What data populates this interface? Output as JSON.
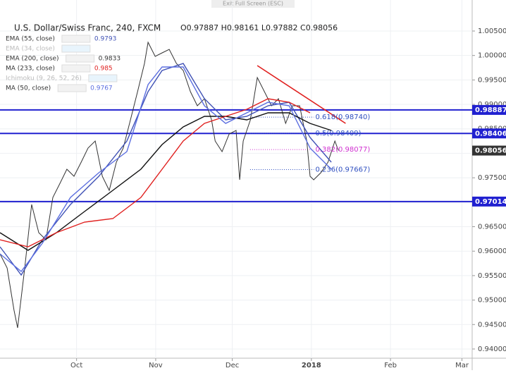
{
  "top_bar": {
    "text": "Exit Full Screen (ESC)"
  },
  "chart_data": {
    "type": "line",
    "title": "U.S. Dollar/Swiss Franc, 240, FXCM",
    "ohlc": "O0.97887 H0.98161 L0.97882 C0.98056",
    "xlim": [
      0,
      185
    ],
    "xticks": [
      {
        "value": 30,
        "label": "Oct"
      },
      {
        "value": 61,
        "label": "Nov"
      },
      {
        "value": 91,
        "label": "Dec"
      },
      {
        "value": 122,
        "label": "2018"
      },
      {
        "value": 153,
        "label": "Feb"
      },
      {
        "value": 181,
        "label": "Mar"
      }
    ],
    "ylim": [
      0.93812,
      1.01134
    ],
    "yticks": [
      {
        "value": 0.94,
        "label": "0.94000"
      },
      {
        "value": 0.945,
        "label": "0.94500"
      },
      {
        "value": 0.95,
        "label": "0.95000"
      },
      {
        "value": 0.955,
        "label": "0.95500"
      },
      {
        "value": 0.96,
        "label": "0.96000"
      },
      {
        "value": 0.965,
        "label": "0.96500"
      },
      {
        "value": 0.97,
        "label": "0.97000"
      },
      {
        "value": 0.975,
        "label": "0.97500"
      },
      {
        "value": 0.98,
        "label": "0.98000"
      },
      {
        "value": 0.985,
        "label": "0.98500"
      },
      {
        "value": 0.99,
        "label": "0.99000"
      },
      {
        "value": 0.995,
        "label": "0.99500"
      },
      {
        "value": 1.0,
        "label": "1.00000"
      },
      {
        "value": 1.005,
        "label": "1.00500"
      }
    ],
    "grid": true,
    "price": {
      "color": "#333333",
      "x": [
        0,
        2.8,
        5.5,
        6.9,
        9.7,
        12.4,
        15.2,
        18.0,
        20.7,
        23.5,
        26.2,
        29.0,
        31.8,
        34.5,
        37.3,
        40.1,
        42.8,
        45.6,
        48.3,
        51.1,
        53.9,
        56.6,
        58.0,
        60.8,
        63.5,
        66.3,
        69.1,
        71.8,
        74.6,
        77.3,
        80.1,
        82.9,
        84.3,
        87.0,
        89.8,
        92.5,
        93.9,
        95.3,
        98.1,
        100.8,
        103.6,
        106.4,
        109.1,
        111.9,
        114.6,
        117.4,
        120.2,
        121.5,
        122.9,
        125.7,
        128.5,
        131.2,
        132.6
      ],
      "values": [
        0.95945,
        0.95657,
        0.94792,
        0.94432,
        0.95657,
        0.96954,
        0.96378,
        0.96233,
        0.97098,
        0.97387,
        0.97675,
        0.97531,
        0.97819,
        0.98107,
        0.98251,
        0.97531,
        0.97242,
        0.97819,
        0.98107,
        0.98684,
        0.9926,
        0.99837,
        1.00269,
        0.99981,
        1.00053,
        1.00125,
        0.99837,
        0.99693,
        0.9926,
        0.98972,
        0.99116,
        0.98684,
        0.98251,
        0.98035,
        0.98395,
        0.98467,
        0.97459,
        0.98251,
        0.98684,
        0.99549,
        0.9926,
        0.98972,
        0.99116,
        0.98612,
        0.98972,
        0.98972,
        0.98251,
        0.97531,
        0.97459,
        0.97603,
        0.97819,
        0.98251,
        0.98056
      ]
    },
    "last": 0.98056,
    "series": [
      {
        "name": "EMA (55, close)",
        "value": 0.9793,
        "color": "#3f51b5",
        "visible": true,
        "x": [
          0,
          8.3,
          16.6,
          27.6,
          38.7,
          49.7,
          58.0,
          63.5,
          71.8,
          80.1,
          88.4,
          96.7,
          105.0,
          113.3,
          121.5,
          129.8
        ],
        "values": [
          0.96089,
          0.95513,
          0.96233,
          0.96954,
          0.97531,
          0.98251,
          0.9926,
          0.99693,
          0.99837,
          0.99116,
          0.98684,
          0.98756,
          0.98972,
          0.99044,
          0.98323,
          0.97819
        ]
      },
      {
        "name": "EMA (34, close)",
        "visible": false
      },
      {
        "name": "EMA (200, close)",
        "value": 0.9833,
        "color": "#111111",
        "visible": true,
        "x": [
          0,
          11.0,
          22.1,
          33.1,
          44.2,
          55.2,
          63.5,
          71.8,
          80.1,
          88.4,
          96.7,
          105.0,
          113.3,
          121.5,
          129.8
        ],
        "values": [
          0.96378,
          0.96017,
          0.96378,
          0.9681,
          0.97242,
          0.97675,
          0.98179,
          0.9854,
          0.98756,
          0.98756,
          0.98684,
          0.98828,
          0.98828,
          0.98612,
          0.98467
        ]
      },
      {
        "name": "MA (233, close)",
        "value": 0.985,
        "color": "#e0201f",
        "visible": true,
        "x": [
          0,
          11.0,
          22.1,
          33.1,
          44.2,
          55.2,
          63.5,
          71.8,
          80.1,
          88.4,
          96.7,
          105.0,
          113.3,
          121.5
        ],
        "values": [
          0.96233,
          0.96089,
          0.96378,
          0.96594,
          0.96666,
          0.97098,
          0.97675,
          0.98251,
          0.98612,
          0.98756,
          0.989,
          0.99116,
          0.99044,
          0.98828
        ]
      },
      {
        "name": "Ichimoku (9, 26, 52, 26)",
        "visible": false
      },
      {
        "name": "MA (50, close)",
        "value": 0.9767,
        "color": "#5b6ee0",
        "visible": true,
        "x": [
          0,
          8.3,
          16.6,
          27.6,
          38.7,
          49.7,
          58.0,
          63.5,
          71.8,
          80.1,
          88.4,
          96.7,
          105.0,
          113.3,
          121.5,
          129.8
        ],
        "values": [
          0.95945,
          0.95585,
          0.96161,
          0.97098,
          0.97603,
          0.98035,
          0.99404,
          0.99765,
          0.99765,
          0.98972,
          0.98612,
          0.98828,
          0.99044,
          0.98972,
          0.98107,
          0.97675
        ]
      }
    ],
    "levels": [
      0.98887,
      0.98406,
      0.97014
    ],
    "level_color": "#2020d0",
    "fib": [
      {
        "label": "0.618(0.98740)",
        "value": 0.9874,
        "color": "#3050c0"
      },
      {
        "label": "0.5(0.98409)",
        "value": 0.98409,
        "color": "#3050c0"
      },
      {
        "label": "0.382(0.98077)",
        "value": 0.98077,
        "color": "#d030d0"
      },
      {
        "label": "0.236(0.97667)",
        "value": 0.97667,
        "color": "#3050c0"
      }
    ],
    "trendline": {
      "x": [
        100.8,
        135.4
      ],
      "values": [
        0.99794,
        0.98612
      ],
      "color": "#e0201f"
    }
  }
}
